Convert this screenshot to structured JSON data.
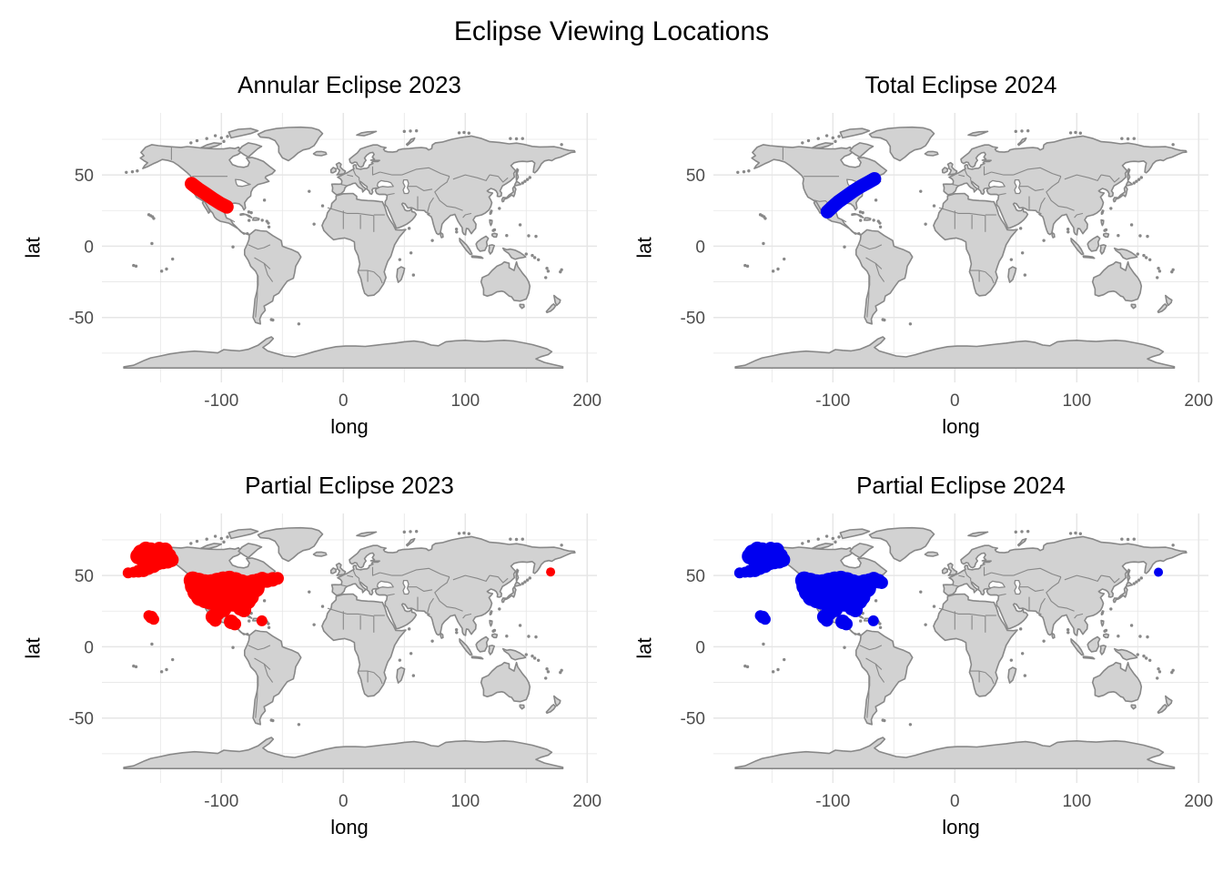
{
  "title": "Eclipse Viewing Locations",
  "colors": {
    "background": "#ffffff",
    "land": "#d2d2d2",
    "country_border": "#888888",
    "gridline": "#e6e6e6",
    "tick_label": "#4d4d4d",
    "axis_title": "#000000",
    "red": "#ff0000",
    "blue": "#0000f0"
  },
  "chart_data": {
    "type": "scatter",
    "subtype": "faceted world-map scatter (2x2), equirectangular lon/lat",
    "title": "Eclipse Viewing Locations",
    "grid": "on",
    "legend": "none",
    "x": {
      "label": "long",
      "ticks": [
        -100,
        0,
        100,
        200
      ],
      "minor_ticks": [
        -150,
        -50,
        50,
        150
      ],
      "range": [
        -198,
        208
      ]
    },
    "y": {
      "label": "lat",
      "ticks": [
        50,
        0,
        -50
      ],
      "minor_ticks": [
        75,
        25,
        -25,
        -75
      ],
      "range": [
        -95.5,
        93.5
      ]
    },
    "facets": [
      {
        "title": "Annular Eclipse 2023",
        "color": "#ff0000",
        "band": [
          [
            -124.5,
            43.8
          ],
          [
            -119,
            40.2
          ],
          [
            -113,
            36.8
          ],
          [
            -107,
            33.3
          ],
          [
            -100.5,
            29.8
          ],
          [
            -95.5,
            27.6
          ]
        ],
        "band_width": 15,
        "clusters": []
      },
      {
        "title": "Total Eclipse 2024",
        "color": "#0000f0",
        "band": [
          [
            -104.5,
            24.2
          ],
          [
            -100,
            27.8
          ],
          [
            -95.5,
            31.2
          ],
          [
            -89.5,
            34.8
          ],
          [
            -83,
            38.8
          ],
          [
            -77,
            42
          ],
          [
            -71,
            44.8
          ],
          [
            -66,
            47.2
          ]
        ],
        "band_width": 15,
        "clusters": []
      },
      {
        "title": "Partial Eclipse 2023",
        "color": "#ff0000",
        "band": [],
        "band_width": 0,
        "clusters": [
          [
            -176.5,
            51.8,
            6
          ],
          [
            -172,
            52.3,
            6
          ],
          [
            -168,
            53,
            7
          ],
          [
            -164,
            54,
            8
          ],
          [
            -160,
            55.5,
            8
          ],
          [
            -156,
            57.5,
            9
          ],
          [
            -152,
            59.5,
            9
          ],
          [
            -149,
            62,
            9
          ],
          [
            -146,
            64.5,
            9
          ],
          [
            -150,
            65.5,
            9
          ],
          [
            -154,
            66.5,
            9
          ],
          [
            -158,
            67.5,
            9
          ],
          [
            -162,
            68,
            9
          ],
          [
            -166,
            66,
            9
          ],
          [
            -168,
            63.5,
            9
          ],
          [
            -164,
            61.5,
            9
          ],
          [
            -160,
            62.5,
            9
          ],
          [
            -156,
            63,
            9
          ],
          [
            -151,
            68.5,
            8
          ],
          [
            -146,
            68,
            8
          ],
          [
            -143,
            64,
            8
          ],
          [
            -141,
            61,
            8
          ],
          [
            -144,
            60,
            8
          ],
          [
            -148,
            59.5,
            8
          ],
          [
            -123.5,
            46.5,
            10
          ],
          [
            -122.5,
            42.5,
            10
          ],
          [
            -120.5,
            38.5,
            10
          ],
          [
            -117.5,
            35,
            10
          ],
          [
            -113.5,
            33.5,
            10
          ],
          [
            -109.5,
            32.5,
            10
          ],
          [
            -105.5,
            31.5,
            10
          ],
          [
            -118.5,
            45.5,
            10
          ],
          [
            -113.5,
            44.5,
            10
          ],
          [
            -108.5,
            44.5,
            10
          ],
          [
            -103.5,
            45.5,
            10
          ],
          [
            -98.5,
            46.5,
            10
          ],
          [
            -93.5,
            47,
            10
          ],
          [
            -88.5,
            46,
            10
          ],
          [
            -83.5,
            44.5,
            10
          ],
          [
            -78.5,
            43.5,
            10
          ],
          [
            -74,
            44.5,
            10
          ],
          [
            -70,
            45.8,
            9
          ],
          [
            -66.5,
            46.8,
            9
          ],
          [
            -62.5,
            46.5,
            8
          ],
          [
            -58,
            47.3,
            8
          ],
          [
            -54,
            48,
            7
          ],
          [
            -116,
            40.5,
            10
          ],
          [
            -111,
            39.5,
            10
          ],
          [
            -106,
            38.5,
            10
          ],
          [
            -101,
            38.5,
            10
          ],
          [
            -96,
            38.5,
            10
          ],
          [
            -91,
            38.5,
            10
          ],
          [
            -86,
            38,
            10
          ],
          [
            -81,
            37.5,
            10
          ],
          [
            -76.5,
            38.5,
            10
          ],
          [
            -72,
            41,
            10
          ],
          [
            -102.5,
            33.5,
            10
          ],
          [
            -98.5,
            31,
            10
          ],
          [
            -94.5,
            31.5,
            10
          ],
          [
            -90.5,
            31,
            10
          ],
          [
            -86.5,
            30.8,
            10
          ],
          [
            -82.5,
            30,
            10
          ],
          [
            -79,
            32.5,
            10
          ],
          [
            -76,
            35,
            9
          ],
          [
            -84,
            27.5,
            9
          ],
          [
            -81.5,
            25.8,
            8
          ],
          [
            -98.5,
            26.5,
            9
          ],
          [
            -103,
            23.5,
            8
          ],
          [
            -107,
            21,
            8
          ],
          [
            -105,
            18.5,
            7
          ],
          [
            -92,
            17.5,
            8
          ],
          [
            -89,
            16,
            7
          ],
          [
            -159.5,
            21.8,
            6
          ],
          [
            -157.5,
            20.8,
            7
          ],
          [
            -155.5,
            19.3,
            6
          ],
          [
            -66.8,
            18.2,
            6
          ],
          [
            170,
            52.5,
            5
          ]
        ]
      },
      {
        "title": "Partial Eclipse 2024",
        "color": "#0000f0",
        "band": [],
        "band_width": 0,
        "clusters": [
          [
            -176.5,
            51.8,
            6
          ],
          [
            -172,
            52.3,
            6
          ],
          [
            -168,
            53,
            7
          ],
          [
            -164,
            54,
            8
          ],
          [
            -160,
            55.5,
            8
          ],
          [
            -156,
            57.5,
            9
          ],
          [
            -152,
            59.5,
            9
          ],
          [
            -149,
            62,
            9
          ],
          [
            -146,
            64.5,
            9
          ],
          [
            -150,
            65.5,
            9
          ],
          [
            -154,
            66.5,
            9
          ],
          [
            -158,
            67.5,
            9
          ],
          [
            -162,
            68,
            9
          ],
          [
            -166,
            66,
            9
          ],
          [
            -168,
            63.5,
            9
          ],
          [
            -164,
            61.5,
            9
          ],
          [
            -160,
            62.5,
            9
          ],
          [
            -156,
            63,
            9
          ],
          [
            -151,
            68.5,
            8
          ],
          [
            -146,
            68,
            8
          ],
          [
            -143,
            64,
            8
          ],
          [
            -141,
            61,
            8
          ],
          [
            -144,
            60,
            8
          ],
          [
            -148,
            59.5,
            8
          ],
          [
            -123.5,
            46.5,
            10
          ],
          [
            -122.5,
            42.5,
            10
          ],
          [
            -120.5,
            38.5,
            10
          ],
          [
            -117.5,
            35,
            10
          ],
          [
            -113.5,
            33.5,
            10
          ],
          [
            -109.5,
            32.5,
            10
          ],
          [
            -105.5,
            31.5,
            10
          ],
          [
            -118.5,
            45.5,
            10
          ],
          [
            -113.5,
            44.5,
            10
          ],
          [
            -108.5,
            44.5,
            10
          ],
          [
            -103.5,
            45.5,
            10
          ],
          [
            -98.5,
            46.5,
            10
          ],
          [
            -93.5,
            47,
            10
          ],
          [
            -88.5,
            46,
            10
          ],
          [
            -83.5,
            44.5,
            10
          ],
          [
            -78.5,
            43.5,
            10
          ],
          [
            -74,
            44.5,
            10
          ],
          [
            -70,
            45.8,
            9
          ],
          [
            -66.5,
            46.8,
            9
          ],
          [
            -62.5,
            46,
            8
          ],
          [
            -60,
            45,
            7
          ],
          [
            -116,
            40.5,
            10
          ],
          [
            -111,
            39.5,
            10
          ],
          [
            -106,
            38.5,
            10
          ],
          [
            -101,
            38.5,
            10
          ],
          [
            -96,
            38.5,
            10
          ],
          [
            -91,
            38.5,
            10
          ],
          [
            -86,
            38,
            10
          ],
          [
            -81,
            37.5,
            10
          ],
          [
            -76.5,
            38.5,
            10
          ],
          [
            -72,
            41,
            10
          ],
          [
            -102.5,
            33.5,
            10
          ],
          [
            -98.5,
            31,
            10
          ],
          [
            -94.5,
            31.5,
            10
          ],
          [
            -90.5,
            31,
            10
          ],
          [
            -86.5,
            30.8,
            10
          ],
          [
            -82.5,
            30,
            10
          ],
          [
            -79,
            32.5,
            10
          ],
          [
            -76,
            35,
            9
          ],
          [
            -84,
            27.5,
            9
          ],
          [
            -81.5,
            25.8,
            8
          ],
          [
            -98.5,
            26.5,
            9
          ],
          [
            -103,
            23.5,
            8
          ],
          [
            -107,
            21,
            8
          ],
          [
            -105,
            18.5,
            7
          ],
          [
            -92,
            17.5,
            8
          ],
          [
            -89,
            16,
            7
          ],
          [
            -159.5,
            21.8,
            6
          ],
          [
            -157.5,
            20.8,
            7
          ],
          [
            -155.5,
            19.3,
            6
          ],
          [
            -66.8,
            18.2,
            6
          ],
          [
            167,
            52.3,
            5
          ]
        ]
      }
    ]
  }
}
